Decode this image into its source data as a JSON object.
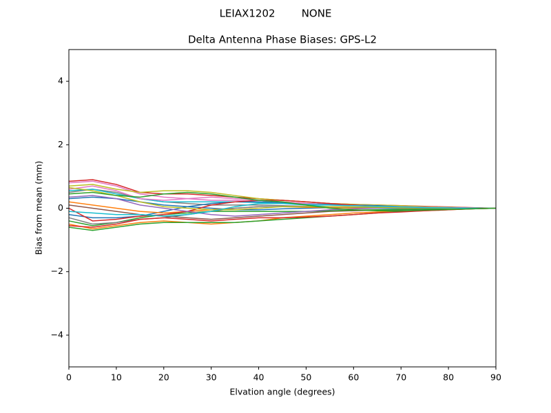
{
  "chart_data": {
    "type": "line",
    "suptitle": "LEIAX1202        NONE",
    "title": "Delta Antenna Phase Biases: GPS-L2",
    "x_label": "Elvation angle (degrees)",
    "y_label": "Bias from mean (mm)",
    "xlim": [
      0,
      90
    ],
    "ylim": [
      -5,
      5
    ],
    "xticks": [
      0,
      10,
      20,
      30,
      40,
      50,
      60,
      70,
      80,
      90
    ],
    "yticks": [
      {
        "value": -4,
        "label": "−4"
      },
      {
        "value": -2,
        "label": "−2"
      },
      0,
      2,
      4
    ],
    "x": [
      0,
      5,
      10,
      15,
      20,
      25,
      30,
      35,
      40,
      45,
      50,
      55,
      60,
      65,
      70,
      75,
      80,
      85,
      90
    ],
    "series": [
      {
        "color": "#d62728",
        "values": [
          0.85,
          0.9,
          0.75,
          0.5,
          0.45,
          0.45,
          0.4,
          0.35,
          0.3,
          0.25,
          0.2,
          0.15,
          0.12,
          0.1,
          0.08,
          0.06,
          0.04,
          0.02,
          0
        ]
      },
      {
        "color": "#1f77b4",
        "values": [
          0.3,
          0.35,
          0.3,
          0.2,
          0.1,
          0.05,
          0.0,
          -0.05,
          -0.05,
          -0.02,
          0.0,
          0.02,
          0.03,
          0.03,
          0.02,
          0.02,
          0.01,
          0.01,
          0
        ]
      },
      {
        "color": "#ff7f0e",
        "values": [
          -0.5,
          -0.65,
          -0.55,
          -0.45,
          -0.4,
          -0.45,
          -0.5,
          -0.45,
          -0.4,
          -0.3,
          -0.25,
          -0.2,
          -0.15,
          -0.12,
          -0.1,
          -0.08,
          -0.05,
          -0.02,
          0
        ]
      },
      {
        "color": "#2ca02c",
        "values": [
          -0.6,
          -0.7,
          -0.6,
          -0.5,
          -0.45,
          -0.45,
          -0.45,
          -0.45,
          -0.4,
          -0.35,
          -0.3,
          -0.25,
          -0.2,
          -0.15,
          -0.1,
          -0.07,
          -0.04,
          -0.02,
          0
        ]
      },
      {
        "color": "#e377c2",
        "values": [
          0.8,
          0.85,
          0.7,
          0.45,
          0.35,
          0.3,
          0.25,
          0.25,
          0.2,
          0.2,
          0.15,
          0.12,
          0.1,
          0.08,
          0.06,
          0.05,
          0.03,
          0.01,
          0
        ]
      },
      {
        "color": "#8c564b",
        "values": [
          0.1,
          0.0,
          -0.1,
          -0.2,
          -0.25,
          -0.3,
          -0.35,
          -0.3,
          -0.25,
          -0.2,
          -0.15,
          -0.1,
          -0.08,
          -0.06,
          -0.05,
          -0.03,
          -0.02,
          -0.01,
          0
        ]
      },
      {
        "color": "#7f7f7f",
        "values": [
          0.5,
          0.6,
          0.5,
          0.3,
          0.2,
          0.15,
          0.1,
          0.1,
          0.1,
          0.08,
          0.06,
          0.05,
          0.04,
          0.03,
          0.02,
          0.02,
          0.01,
          0,
          0
        ]
      },
      {
        "color": "#bcbd22",
        "values": [
          0.7,
          0.75,
          0.6,
          0.5,
          0.55,
          0.55,
          0.5,
          0.4,
          0.3,
          0.25,
          0.2,
          0.15,
          0.12,
          0.1,
          0.08,
          0.05,
          0.03,
          0.01,
          0
        ]
      },
      {
        "color": "#17becf",
        "values": [
          0.55,
          0.6,
          0.45,
          0.3,
          0.2,
          0.2,
          0.2,
          0.2,
          0.18,
          0.15,
          0.1,
          0.05,
          0.02,
          0,
          -0.02,
          -0.02,
          -0.01,
          0,
          0
        ]
      },
      {
        "color": "#1f77b4",
        "values": [
          -0.2,
          -0.3,
          -0.3,
          -0.25,
          -0.1,
          0.05,
          0.15,
          0.2,
          0.2,
          0.18,
          0.15,
          0.12,
          0.1,
          0.08,
          0.05,
          0.03,
          0.02,
          0.01,
          0
        ]
      },
      {
        "color": "#ff7f0e",
        "values": [
          0.2,
          0.1,
          0.0,
          -0.1,
          -0.15,
          -0.1,
          -0.05,
          0,
          0.05,
          0.05,
          0.03,
          0.02,
          0.01,
          0.01,
          0,
          0,
          0,
          0,
          0
        ]
      },
      {
        "color": "#2ca02c",
        "values": [
          -0.4,
          -0.55,
          -0.45,
          -0.3,
          -0.2,
          -0.15,
          -0.1,
          -0.1,
          -0.1,
          -0.1,
          -0.1,
          -0.08,
          -0.06,
          -0.05,
          -0.04,
          -0.03,
          -0.02,
          -0.01,
          0
        ]
      },
      {
        "color": "#d62728",
        "values": [
          0.0,
          -0.4,
          -0.35,
          -0.25,
          -0.2,
          -0.1,
          0.1,
          0.2,
          0.25,
          0.25,
          0.2,
          0.15,
          0.1,
          0.06,
          0.03,
          0.01,
          0,
          0,
          0
        ]
      },
      {
        "color": "#9467bd",
        "values": [
          0.35,
          0.4,
          0.3,
          0.1,
          0.0,
          -0.1,
          -0.2,
          -0.25,
          -0.2,
          -0.15,
          -0.1,
          -0.05,
          -0.02,
          0,
          0.01,
          0.01,
          0.01,
          0,
          0
        ]
      },
      {
        "color": "#e377c2",
        "values": [
          0.6,
          0.7,
          0.55,
          0.3,
          0.25,
          0.3,
          0.35,
          0.3,
          0.25,
          0.2,
          0.15,
          0.1,
          0.08,
          0.06,
          0.05,
          0.03,
          0.02,
          0.01,
          0
        ]
      },
      {
        "color": "#7f7f7f",
        "values": [
          -0.3,
          -0.5,
          -0.45,
          -0.35,
          -0.3,
          -0.2,
          -0.1,
          0,
          0.05,
          0.05,
          0.05,
          0.04,
          0.03,
          0.02,
          0.01,
          0,
          0,
          0,
          0
        ]
      },
      {
        "color": "#bcbd22",
        "values": [
          0.65,
          0.55,
          0.4,
          0.2,
          0.05,
          0.0,
          -0.05,
          -0.05,
          0,
          0.05,
          0.05,
          0.05,
          0.04,
          0.03,
          0.02,
          0.01,
          0,
          0,
          0
        ]
      },
      {
        "color": "#17becf",
        "values": [
          -0.1,
          -0.15,
          -0.2,
          -0.2,
          -0.25,
          -0.2,
          -0.1,
          0.05,
          0.15,
          0.15,
          0.12,
          0.1,
          0.08,
          0.06,
          0.04,
          0.02,
          0.01,
          0,
          0
        ]
      },
      {
        "color": "#d62728",
        "values": [
          -0.55,
          -0.6,
          -0.5,
          -0.35,
          -0.3,
          -0.35,
          -0.4,
          -0.35,
          -0.3,
          -0.3,
          -0.28,
          -0.25,
          -0.2,
          -0.15,
          -0.12,
          -0.08,
          -0.05,
          -0.02,
          0
        ]
      },
      {
        "color": "#2ca02c",
        "values": [
          0.45,
          0.5,
          0.4,
          0.35,
          0.45,
          0.5,
          0.45,
          0.35,
          0.25,
          0.2,
          0.1,
          0.0,
          -0.05,
          -0.08,
          -0.08,
          -0.06,
          -0.04,
          -0.02,
          0
        ]
      }
    ]
  }
}
